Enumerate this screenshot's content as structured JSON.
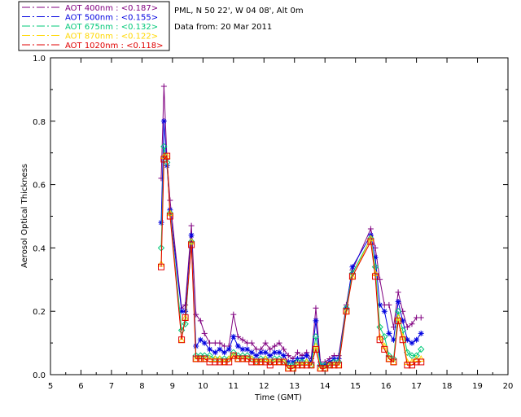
{
  "chart_data": {
    "type": "line",
    "info_line1": "PML, N 50 22', W 04 08', Alt 0m",
    "info_line2": "Data from: 20 Mar 2011",
    "xlabel": "Time (GMT)",
    "ylabel": "Aerosol Optical Thickness",
    "xlim": [
      5,
      20
    ],
    "ylim": [
      0.0,
      1.0
    ],
    "xticks": [
      "5",
      "6",
      "7",
      "8",
      "9",
      "10",
      "11",
      "12",
      "13",
      "14",
      "15",
      "16",
      "17",
      "18",
      "19",
      "20"
    ],
    "yticks": [
      "0.0",
      "0.2",
      "0.4",
      "0.6",
      "0.8",
      "1.0"
    ],
    "legend_placement": "top-left",
    "x": [
      8.63,
      8.72,
      8.82,
      8.92,
      9.3,
      9.42,
      9.62,
      9.77,
      9.92,
      10.05,
      10.22,
      10.4,
      10.55,
      10.7,
      10.85,
      11.0,
      11.15,
      11.3,
      11.45,
      11.6,
      11.75,
      11.9,
      12.05,
      12.2,
      12.35,
      12.5,
      12.65,
      12.8,
      12.95,
      13.1,
      13.25,
      13.4,
      13.55,
      13.7,
      13.85,
      14.0,
      14.15,
      14.3,
      14.45,
      14.7,
      14.9,
      15.5,
      15.65,
      15.8,
      15.95,
      16.1,
      16.25,
      16.4,
      16.55,
      16.7,
      16.85,
      17.0,
      17.15
    ],
    "series": [
      {
        "name": "AOT  400nm : <0.187>",
        "color": "#800080",
        "marker": "plus",
        "values": [
          0.62,
          0.91,
          0.68,
          0.55,
          0.21,
          0.22,
          0.47,
          0.19,
          0.17,
          0.13,
          0.1,
          0.1,
          0.1,
          0.09,
          0.09,
          0.19,
          0.12,
          0.11,
          0.1,
          0.1,
          0.08,
          0.08,
          0.1,
          0.08,
          0.09,
          0.1,
          0.08,
          0.06,
          0.05,
          0.07,
          0.06,
          0.07,
          0.05,
          0.21,
          0.04,
          0.04,
          0.05,
          0.06,
          0.06,
          0.22,
          0.33,
          0.46,
          0.4,
          0.3,
          0.22,
          0.22,
          0.15,
          0.26,
          0.2,
          0.15,
          0.16,
          0.18,
          0.18
        ]
      },
      {
        "name": "AOT  500nm : <0.155>",
        "color": "#0000e0",
        "marker": "star",
        "values": [
          0.48,
          0.8,
          0.66,
          0.52,
          0.2,
          0.2,
          0.44,
          0.09,
          0.11,
          0.1,
          0.08,
          0.07,
          0.08,
          0.07,
          0.08,
          0.12,
          0.09,
          0.08,
          0.08,
          0.07,
          0.06,
          0.07,
          0.07,
          0.06,
          0.07,
          0.07,
          0.06,
          0.04,
          0.04,
          0.05,
          0.05,
          0.06,
          0.04,
          0.17,
          0.03,
          0.03,
          0.04,
          0.05,
          0.05,
          0.21,
          0.34,
          0.44,
          0.37,
          0.22,
          0.2,
          0.13,
          0.11,
          0.23,
          0.17,
          0.11,
          0.1,
          0.11,
          0.13
        ]
      },
      {
        "name": "AOT  675nm : <0.132>",
        "color": "#00c878",
        "marker": "diamond",
        "values": [
          0.4,
          0.72,
          0.67,
          0.51,
          0.14,
          0.16,
          0.42,
          0.06,
          0.06,
          0.06,
          0.06,
          0.05,
          0.05,
          0.05,
          0.05,
          0.07,
          0.06,
          0.06,
          0.06,
          0.05,
          0.04,
          0.05,
          0.05,
          0.04,
          0.05,
          0.05,
          0.04,
          0.03,
          0.03,
          0.04,
          0.04,
          0.04,
          0.03,
          0.12,
          0.03,
          0.03,
          0.03,
          0.04,
          0.04,
          0.21,
          0.32,
          0.43,
          0.34,
          0.15,
          0.12,
          0.06,
          0.05,
          0.2,
          0.14,
          0.07,
          0.06,
          0.06,
          0.08
        ]
      },
      {
        "name": "AOT  870nm : <0.122>",
        "color": "#ffd700",
        "marker": "triangle",
        "values": [
          0.35,
          0.69,
          0.69,
          0.51,
          0.11,
          0.18,
          0.42,
          0.05,
          0.05,
          0.05,
          0.05,
          0.05,
          0.05,
          0.04,
          0.05,
          0.06,
          0.05,
          0.05,
          0.05,
          0.05,
          0.04,
          0.04,
          0.05,
          0.04,
          0.04,
          0.04,
          0.04,
          0.02,
          0.02,
          0.03,
          0.03,
          0.04,
          0.03,
          0.09,
          0.02,
          0.02,
          0.03,
          0.03,
          0.03,
          0.2,
          0.31,
          0.43,
          0.32,
          0.12,
          0.09,
          0.05,
          0.04,
          0.18,
          0.12,
          0.04,
          0.04,
          0.05,
          0.05
        ]
      },
      {
        "name": "AOT 1020nm : <0.118>",
        "color": "#e00000",
        "marker": "square",
        "values": [
          0.34,
          0.68,
          0.69,
          0.5,
          0.11,
          0.18,
          0.41,
          0.05,
          0.05,
          0.05,
          0.04,
          0.04,
          0.04,
          0.04,
          0.04,
          0.06,
          0.05,
          0.05,
          0.05,
          0.04,
          0.04,
          0.04,
          0.04,
          0.03,
          0.04,
          0.04,
          0.04,
          0.02,
          0.02,
          0.03,
          0.03,
          0.03,
          0.03,
          0.08,
          0.02,
          0.02,
          0.03,
          0.03,
          0.03,
          0.2,
          0.31,
          0.42,
          0.31,
          0.11,
          0.08,
          0.05,
          0.04,
          0.17,
          0.11,
          0.03,
          0.03,
          0.04,
          0.04
        ]
      }
    ]
  }
}
